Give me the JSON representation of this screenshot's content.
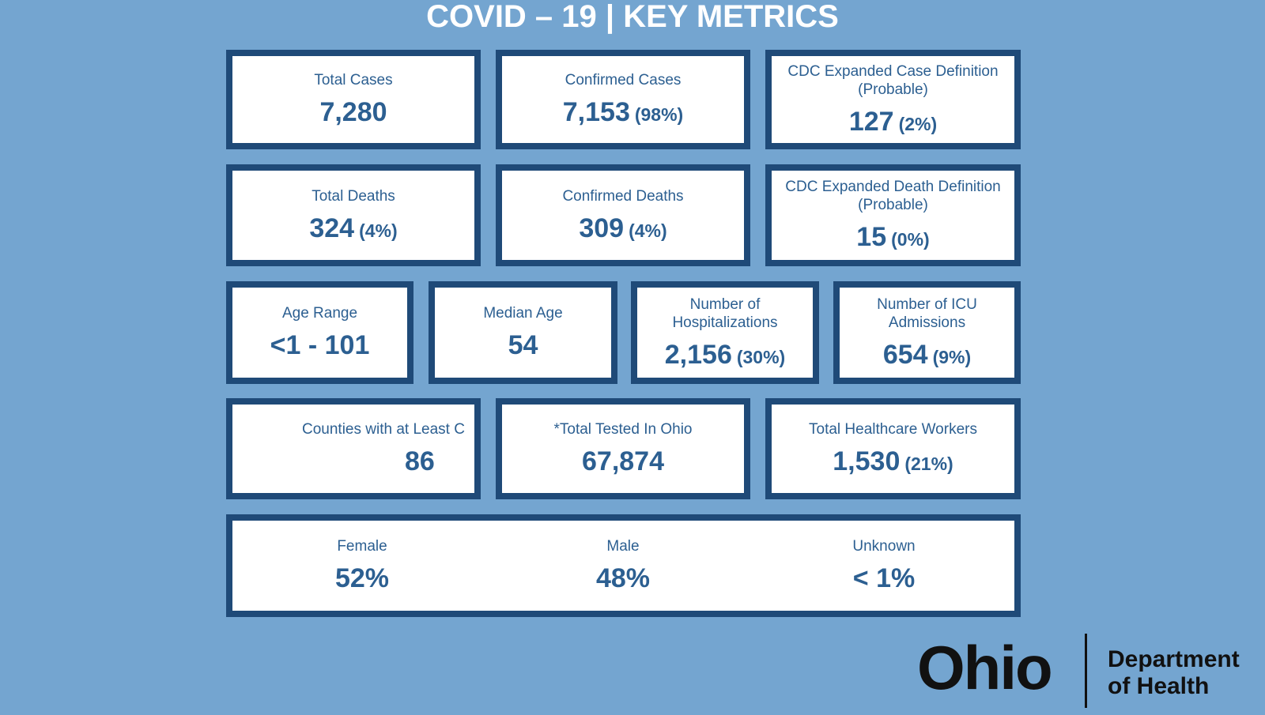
{
  "title": "COVID – 19 | KEY METRICS",
  "rows": [
    [
      {
        "label": "Total Cases",
        "value": "7,280"
      },
      {
        "label": "Confirmed Cases",
        "value": "7,153",
        "pct": "(98%)"
      },
      {
        "label": "CDC Expanded Case Definition (Probable)",
        "value": "127",
        "pct": "(2%)"
      }
    ],
    [
      {
        "label": "Total Deaths",
        "value": "324",
        "pct": "(4%)"
      },
      {
        "label": "Confirmed Deaths",
        "value": "309",
        "pct": "(4%)"
      },
      {
        "label": "CDC Expanded Death Definition (Probable)",
        "value": "15",
        "pct": "(0%)"
      }
    ],
    [
      {
        "label": "Age Range",
        "value": "<1 - 101"
      },
      {
        "label": "Median Age",
        "value": "54"
      },
      {
        "label": "Number of Hospitalizations",
        "value": "2,156",
        "pct": "(30%)"
      },
      {
        "label": "Number of ICU Admissions",
        "value": "654",
        "pct": "(9%)"
      }
    ],
    [
      {
        "label": "Counties with at Least C",
        "value": "86"
      },
      {
        "label": "*Total Tested In Ohio",
        "value": "67,874"
      },
      {
        "label": "Total Healthcare Workers",
        "value": "1,530",
        "pct": "(21%)"
      }
    ]
  ],
  "sex": [
    {
      "label": "Female",
      "value": "52%"
    },
    {
      "label": "Male",
      "value": "48%"
    },
    {
      "label": "Unknown",
      "value": "< 1%"
    }
  ],
  "logo": {
    "name": "Ohio",
    "line1": "Department",
    "line2": "of Health"
  }
}
